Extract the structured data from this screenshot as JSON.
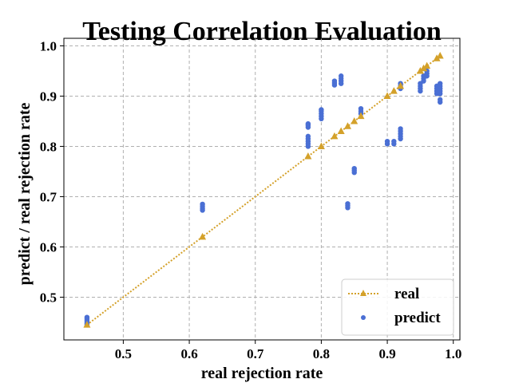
{
  "chart_data": {
    "type": "scatter",
    "title": "Testing Correlation Evaluation",
    "xlabel": "real rejection rate",
    "ylabel": "predict / real rejection rate",
    "xlim": [
      0.41,
      1.01
    ],
    "ylim": [
      0.415,
      1.015
    ],
    "xticks": [
      0.5,
      0.6,
      0.7,
      0.8,
      0.9,
      1.0
    ],
    "xtick_labels": [
      "0.5",
      "0.6",
      "0.7",
      "0.8",
      "0.9",
      "1.0"
    ],
    "yticks": [
      0.5,
      0.6,
      0.7,
      0.8,
      0.9,
      1.0
    ],
    "ytick_labels": [
      "0.5",
      "0.6",
      "0.7",
      "0.8",
      "0.9",
      "1.0"
    ],
    "grid": true,
    "legend_position": "lower-right",
    "series": [
      {
        "name": "real",
        "kind": "line-with-triangle-markers",
        "line_style": "dotted",
        "color": "#d4a12a",
        "points": [
          [
            0.445,
            0.445
          ],
          [
            0.62,
            0.62
          ],
          [
            0.78,
            0.78
          ],
          [
            0.8,
            0.8
          ],
          [
            0.82,
            0.82
          ],
          [
            0.83,
            0.83
          ],
          [
            0.84,
            0.84
          ],
          [
            0.85,
            0.85
          ],
          [
            0.86,
            0.86
          ],
          [
            0.9,
            0.9
          ],
          [
            0.91,
            0.91
          ],
          [
            0.92,
            0.92
          ],
          [
            0.95,
            0.95
          ],
          [
            0.955,
            0.955
          ],
          [
            0.96,
            0.96
          ],
          [
            0.975,
            0.975
          ],
          [
            0.98,
            0.98
          ]
        ]
      },
      {
        "name": "predict",
        "kind": "scatter",
        "color": "#4a6fd4",
        "clusters": [
          {
            "x": 0.445,
            "y": [
              0.445,
              0.448,
              0.451,
              0.454,
              0.457,
              0.46
            ]
          },
          {
            "x": 0.62,
            "y": [
              0.673,
              0.677,
              0.681,
              0.685
            ]
          },
          {
            "x": 0.78,
            "y": [
              0.8,
              0.805,
              0.81,
              0.815,
              0.82,
              0.838,
              0.842,
              0.845
            ]
          },
          {
            "x": 0.8,
            "y": [
              0.855,
              0.86,
              0.865,
              0.87,
              0.873
            ]
          },
          {
            "x": 0.82,
            "y": [
              0.922,
              0.926,
              0.93
            ]
          },
          {
            "x": 0.83,
            "y": [
              0.925,
              0.93,
              0.935,
              0.94
            ]
          },
          {
            "x": 0.84,
            "y": [
              0.678,
              0.682,
              0.686
            ]
          },
          {
            "x": 0.85,
            "y": [
              0.748,
              0.752,
              0.756
            ]
          },
          {
            "x": 0.86,
            "y": [
              0.865,
              0.87,
              0.875
            ]
          },
          {
            "x": 0.9,
            "y": [
              0.805,
              0.81
            ]
          },
          {
            "x": 0.91,
            "y": [
              0.805,
              0.81
            ]
          },
          {
            "x": 0.92,
            "y": [
              0.815,
              0.82,
              0.825,
              0.83,
              0.835,
              0.915,
              0.92,
              0.925
            ]
          },
          {
            "x": 0.95,
            "y": [
              0.91,
              0.915,
              0.92,
              0.925
            ]
          },
          {
            "x": 0.955,
            "y": [
              0.93,
              0.935,
              0.94
            ]
          },
          {
            "x": 0.96,
            "y": [
              0.94,
              0.945,
              0.95
            ]
          },
          {
            "x": 0.975,
            "y": [
              0.905,
              0.91,
              0.915,
              0.92
            ]
          },
          {
            "x": 0.98,
            "y": [
              0.888,
              0.893,
              0.905,
              0.91,
              0.915,
              0.92,
              0.925
            ]
          }
        ]
      }
    ]
  }
}
